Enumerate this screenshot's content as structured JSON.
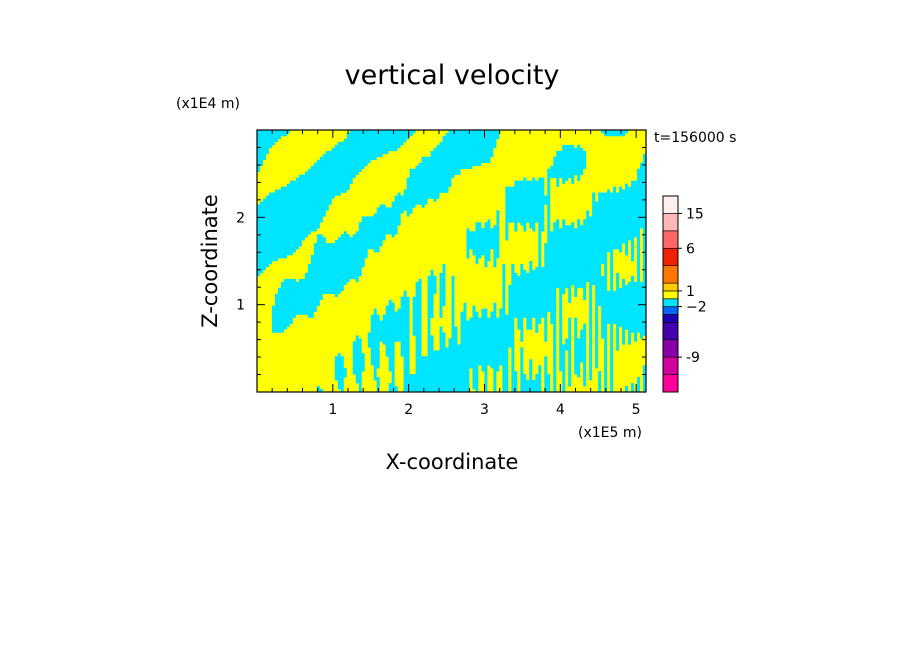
{
  "chart_data": {
    "type": "heatmap",
    "title": "vertical velocity",
    "xlabel": "X-coordinate",
    "ylabel": "Z-coordinate",
    "x_scale_label": "(x1E5 m)",
    "y_scale_label": "(x1E4 m)",
    "time_label": "t=156000 s",
    "xlim": [
      0,
      5.13
    ],
    "ylim": [
      0,
      3.0
    ],
    "x_ticks": [
      {
        "value": 1,
        "label": "1"
      },
      {
        "value": 2,
        "label": "2"
      },
      {
        "value": 3,
        "label": "3"
      },
      {
        "value": 4,
        "label": "4"
      },
      {
        "value": 5,
        "label": "5"
      }
    ],
    "y_ticks": [
      {
        "value": 1,
        "label": "1"
      },
      {
        "value": 2,
        "label": "2"
      }
    ],
    "field": {
      "description_colors": {
        "positive": "#ffff00",
        "negative": "#00e5ff"
      },
      "dominant_levels": [
        -2,
        1
      ]
    },
    "colorbar": {
      "levels": [
        {
          "color": "#ff0099"
        },
        {
          "color": "#d1009e"
        },
        {
          "color": "#8800aa"
        },
        {
          "color": "#4400b0"
        },
        {
          "color": "#1a00b4"
        },
        {
          "color": "#0066ff"
        },
        {
          "color": "#00e5ff"
        },
        {
          "color": "#ffff00"
        },
        {
          "color": "#ffcc00"
        },
        {
          "color": "#ff7700"
        },
        {
          "color": "#ee2200"
        },
        {
          "color": "#ff6666"
        },
        {
          "color": "#ffb8b8"
        },
        {
          "color": "#ffeeee"
        }
      ],
      "tick_labels": [
        {
          "label": "-9",
          "level_index": 1
        },
        {
          "label": "−2",
          "level_index": 5
        },
        {
          "label": "1",
          "level_index": 7
        },
        {
          "label": "6",
          "level_index": 10
        },
        {
          "label": "15",
          "level_index": 12
        }
      ]
    }
  }
}
